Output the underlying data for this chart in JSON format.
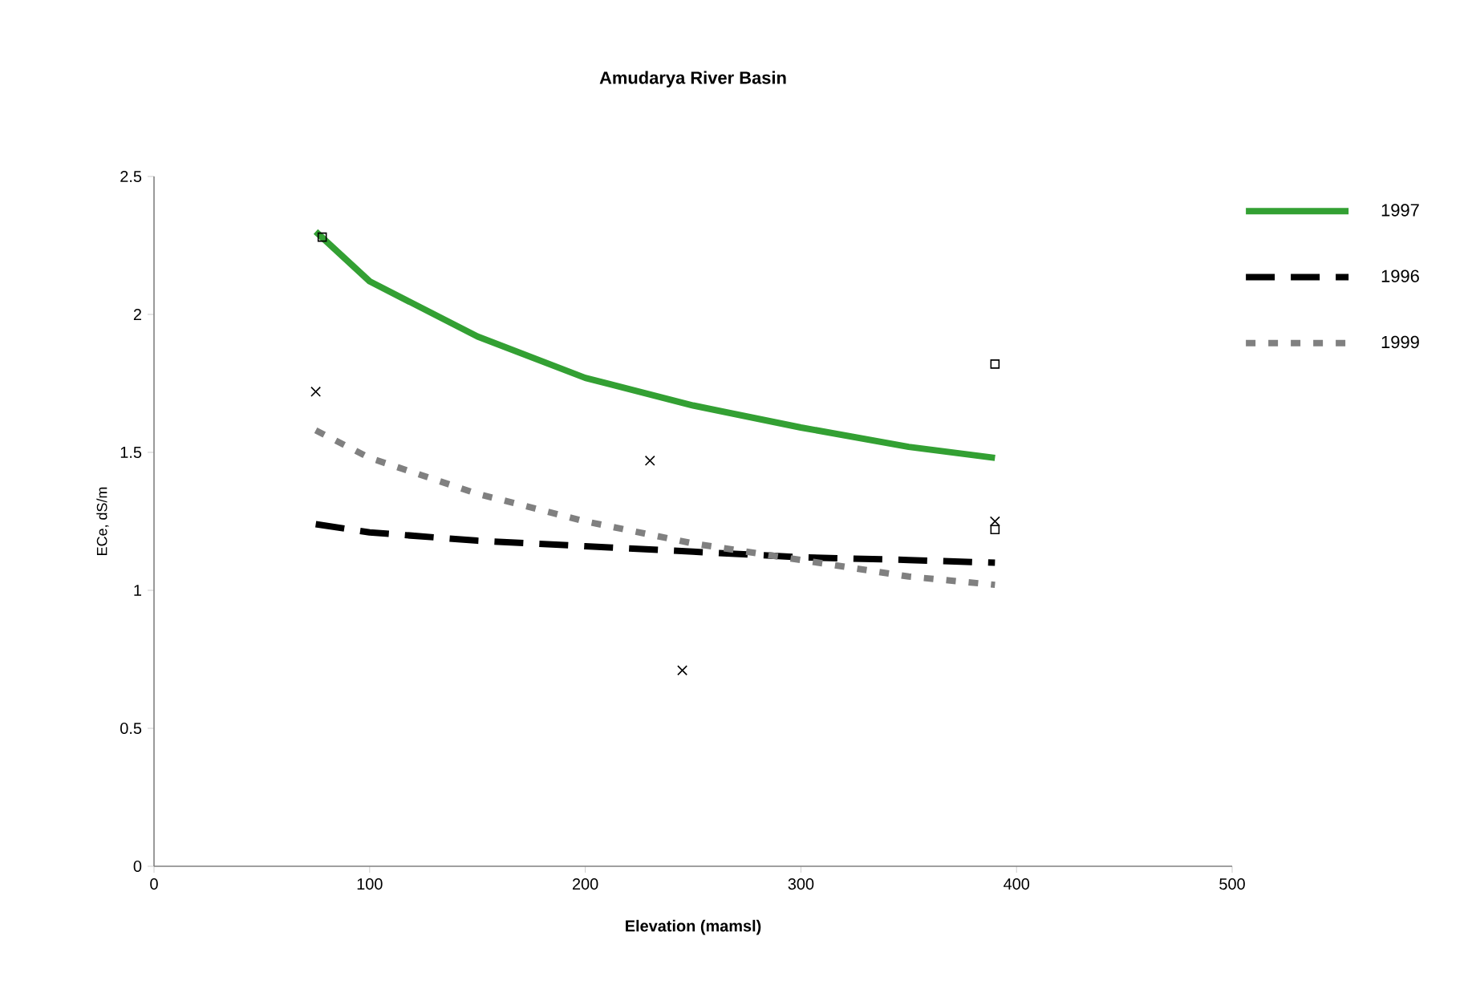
{
  "chart_data": {
    "type": "line",
    "title": "Amudarya River Basin",
    "xlabel": "Elevation (mamsl)",
    "ylabel": "ECe, dS/m",
    "xlim": [
      0,
      500
    ],
    "xticks": [
      0,
      100,
      200,
      300,
      400,
      500
    ],
    "ylim": [
      0,
      2.5
    ],
    "yticks": [
      0,
      0.5,
      1,
      1.5,
      2,
      2.5
    ],
    "legend": "right",
    "grid": false,
    "series": [
      {
        "name": "1997",
        "color": "#33a033",
        "line_style": "solid",
        "marker": "none",
        "x": [
          75,
          100,
          150,
          200,
          250,
          300,
          350,
          390
        ],
        "values": [
          2.3,
          2.12,
          1.92,
          1.77,
          1.67,
          1.59,
          1.52,
          1.48
        ]
      },
      {
        "name": "1996",
        "color": "#000000",
        "line_style": "dashed",
        "marker": "none",
        "x": [
          75,
          100,
          150,
          200,
          250,
          300,
          350,
          390
        ],
        "values": [
          1.24,
          1.21,
          1.18,
          1.16,
          1.14,
          1.12,
          1.11,
          1.1
        ]
      },
      {
        "name": "1999",
        "color": "#808080",
        "line_style": "dotted",
        "marker": "none",
        "x": [
          75,
          100,
          150,
          200,
          250,
          300,
          350,
          390
        ],
        "values": [
          1.58,
          1.48,
          1.35,
          1.25,
          1.17,
          1.11,
          1.05,
          1.02
        ]
      },
      {
        "type": "scatter",
        "color": "#000000",
        "marker": "square",
        "x": [
          78,
          390,
          390
        ],
        "values": [
          2.28,
          1.82,
          1.22
        ]
      },
      {
        "type": "scatter",
        "color": "#000000",
        "marker": "cross",
        "x": [
          75,
          230,
          245,
          390
        ],
        "values": [
          1.72,
          1.47,
          0.71,
          1.25
        ]
      }
    ]
  }
}
